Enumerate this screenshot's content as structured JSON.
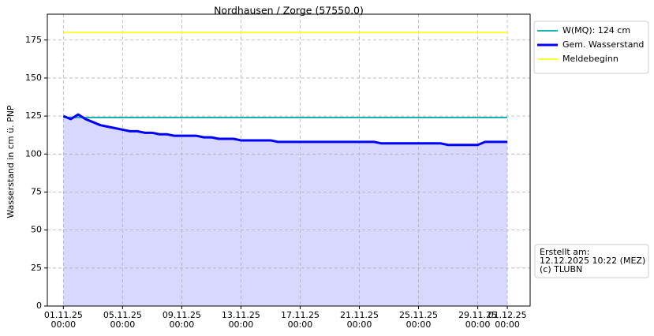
{
  "chart_data": {
    "type": "line",
    "title": "Nordhausen / Zorge (57550.0)",
    "y_label": "Wasserstand in cm ü. PNP",
    "ylim": [
      0,
      192
    ],
    "yticks": [
      0,
      25,
      50,
      75,
      100,
      125,
      150,
      175
    ],
    "xlim": [
      "30.10.25 22:00",
      "02.12.25 13:00"
    ],
    "xticks": [
      "01.11.25 00:00",
      "05.11.25 00:00",
      "09.11.25 00:00",
      "13.11.25 00:00",
      "17.11.25 00:00",
      "21.11.25 00:00",
      "25.11.25 00:00",
      "29.11.25 00:00",
      "01.12.25 00:00"
    ],
    "grid": true,
    "legend": "outside-upper-right",
    "series": [
      {
        "name": "W(MQ): 124 cm",
        "color": "#17b3b3",
        "width": 2,
        "x": [
          "01.11.25 00:00",
          "01.12.25 00:00"
        ],
        "values": [
          124,
          124
        ]
      },
      {
        "name": "Gem. Wasserstand",
        "color": "#0000ff",
        "width": 3,
        "fill": "#d8d8ff",
        "x": [
          "01.11.25 00:00",
          "01.11.25 12:00",
          "02.11.25 00:00",
          "02.11.25 12:00",
          "03.11.25 00:00",
          "03.11.25 12:00",
          "04.11.25 00:00",
          "04.11.25 12:00",
          "05.11.25 00:00",
          "05.11.25 12:00",
          "06.11.25 00:00",
          "06.11.25 12:00",
          "07.11.25 00:00",
          "07.11.25 12:00",
          "08.11.25 00:00",
          "08.11.25 12:00",
          "09.11.25 00:00",
          "09.11.25 12:00",
          "10.11.25 00:00",
          "10.11.25 12:00",
          "11.11.25 00:00",
          "11.11.25 12:00",
          "12.11.25 00:00",
          "12.11.25 12:00",
          "13.11.25 00:00",
          "13.11.25 12:00",
          "14.11.25 00:00",
          "14.11.25 12:00",
          "15.11.25 00:00",
          "15.11.25 12:00",
          "16.11.25 00:00",
          "16.11.25 12:00",
          "17.11.25 00:00",
          "17.11.25 12:00",
          "18.11.25 00:00",
          "18.11.25 12:00",
          "19.11.25 00:00",
          "19.11.25 12:00",
          "20.11.25 00:00",
          "20.11.25 12:00",
          "21.11.25 00:00",
          "21.11.25 12:00",
          "22.11.25 00:00",
          "22.11.25 12:00",
          "23.11.25 00:00",
          "23.11.25 12:00",
          "24.11.25 00:00",
          "24.11.25 12:00",
          "25.11.25 00:00",
          "25.11.25 12:00",
          "26.11.25 00:00",
          "26.11.25 12:00",
          "27.11.25 00:00",
          "27.11.25 12:00",
          "28.11.25 00:00",
          "28.11.25 12:00",
          "29.11.25 00:00",
          "29.11.25 12:00",
          "30.11.25 00:00",
          "30.11.25 12:00",
          "01.12.25 00:00"
        ],
        "values": [
          125,
          123,
          126,
          123,
          121,
          119,
          118,
          117,
          116,
          115,
          115,
          114,
          114,
          113,
          113,
          112,
          112,
          112,
          112,
          111,
          111,
          110,
          110,
          110,
          109,
          109,
          109,
          109,
          109,
          108,
          108,
          108,
          108,
          108,
          108,
          108,
          108,
          108,
          108,
          108,
          108,
          108,
          108,
          107,
          107,
          107,
          107,
          107,
          107,
          107,
          107,
          107,
          106,
          106,
          106,
          106,
          106,
          108,
          108,
          108,
          108
        ]
      },
      {
        "name": "Meldebeginn",
        "color": "#ffff33",
        "width": 2,
        "x": [
          "01.11.25 00:00",
          "01.12.25 00:00"
        ],
        "values": [
          180,
          180
        ]
      }
    ],
    "annotation": [
      "Erstellt am:",
      "12.12.2025 10:22 (MEZ)",
      "(c) TLUBN"
    ]
  }
}
